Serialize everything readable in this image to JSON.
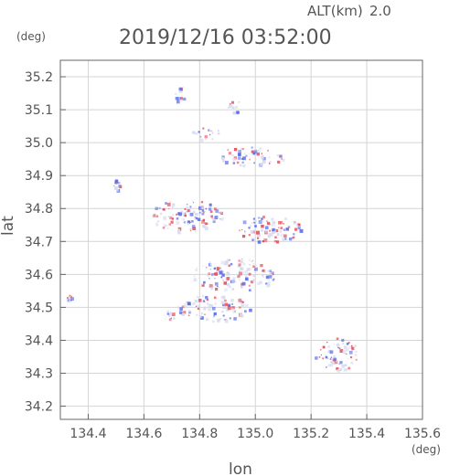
{
  "header": {
    "alt_label": "ALT(km)",
    "alt_value": "2.0",
    "timestamp": "2019/12/16 03:52:00"
  },
  "chart_data": {
    "type": "scatter",
    "xlabel": "lon",
    "ylabel": "lat",
    "xunit": "(deg)",
    "yunit": "(deg)",
    "xlim": [
      134.3,
      135.6
    ],
    "ylim": [
      34.16,
      35.25
    ],
    "xticks": [
      "134.4",
      "134.6",
      "134.8",
      "135.0",
      "135.2",
      "135.4",
      "135.6"
    ],
    "yticks": [
      "34.2",
      "34.3",
      "34.4",
      "34.5",
      "34.6",
      "34.7",
      "34.8",
      "34.9",
      "35.0",
      "35.1",
      "35.2"
    ],
    "grid": true,
    "colors": {
      "positive": "#e8505a",
      "negative": "#5a6ee8",
      "neutral": "#d8dcef",
      "axis": "#666666"
    },
    "clusters": [
      {
        "region": "north-small",
        "lon": 134.73,
        "lat": 35.15,
        "spread_lon": 0.02,
        "spread_lat": 0.03
      },
      {
        "region": "north-right",
        "lon": 134.93,
        "lat": 35.11,
        "spread_lon": 0.03,
        "spread_lat": 0.02
      },
      {
        "region": "north-mid",
        "lon": 134.82,
        "lat": 35.03,
        "spread_lon": 0.05,
        "spread_lat": 0.02
      },
      {
        "region": "central-band",
        "lon": 134.98,
        "lat": 34.96,
        "spread_lon": 0.12,
        "spread_lat": 0.03
      },
      {
        "region": "west-dot",
        "lon": 134.5,
        "lat": 34.87,
        "spread_lon": 0.01,
        "spread_lat": 0.02
      },
      {
        "region": "central-main",
        "lon": 134.75,
        "lat": 34.78,
        "spread_lon": 0.13,
        "spread_lat": 0.05
      },
      {
        "region": "central-east",
        "lon": 135.05,
        "lat": 34.74,
        "spread_lon": 0.12,
        "spread_lat": 0.04
      },
      {
        "region": "central-south",
        "lon": 134.92,
        "lat": 34.6,
        "spread_lon": 0.15,
        "spread_lat": 0.05
      },
      {
        "region": "south-main",
        "lon": 134.85,
        "lat": 34.5,
        "spread_lon": 0.13,
        "spread_lat": 0.04
      },
      {
        "region": "southwest",
        "lon": 134.69,
        "lat": 34.48,
        "spread_lon": 0.02,
        "spread_lat": 0.02
      },
      {
        "region": "far-west",
        "lon": 134.33,
        "lat": 34.53,
        "spread_lon": 0.01,
        "spread_lat": 0.01
      },
      {
        "region": "southeast",
        "lon": 135.29,
        "lat": 34.36,
        "spread_lon": 0.08,
        "spread_lat": 0.05
      }
    ]
  }
}
